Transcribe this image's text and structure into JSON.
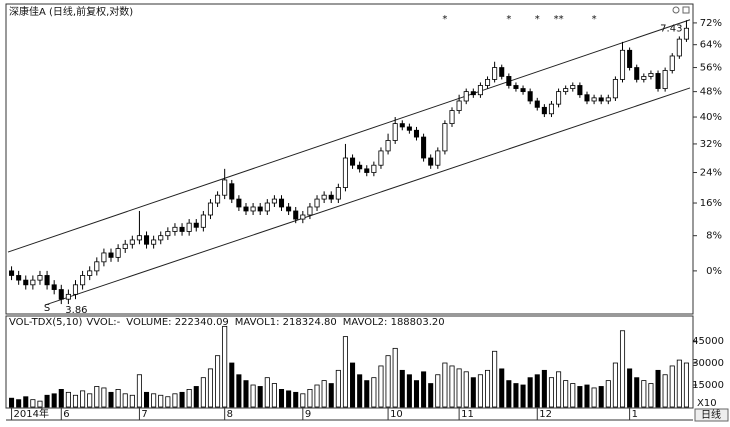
{
  "chart_data": [
    {
      "type": "candlestick",
      "title": "深康佳A (日线,前复权,对数)",
      "categories": [
        "2014年",
        null,
        null,
        null,
        null,
        null,
        null,
        "6",
        null,
        null,
        null,
        null,
        null,
        null,
        null,
        null,
        null,
        null,
        "7",
        null,
        null,
        null,
        null,
        null,
        null,
        null,
        null,
        null,
        null,
        null,
        "8",
        null,
        null,
        null,
        null,
        null,
        null,
        null,
        null,
        null,
        null,
        "9",
        null,
        null,
        null,
        null,
        null,
        null,
        null,
        null,
        null,
        null,
        null,
        "10",
        null,
        null,
        null,
        null,
        null,
        null,
        null,
        null,
        null,
        "11",
        null,
        null,
        null,
        null,
        null,
        null,
        null,
        null,
        null,
        null,
        "12",
        null,
        null,
        null,
        null,
        null,
        null,
        null,
        null,
        null,
        null,
        null,
        null,
        "1",
        null,
        null,
        null,
        null,
        null,
        null,
        null,
        null
      ],
      "open": [
        0,
        -1,
        -2,
        -3,
        -2,
        -1,
        -3,
        -4,
        -6,
        -5,
        -3,
        -1,
        0,
        2,
        4,
        3,
        5,
        6,
        7,
        8,
        6,
        7,
        8,
        9,
        10,
        9,
        11,
        10,
        13,
        16,
        18,
        21,
        17,
        15,
        14,
        15,
        14,
        16,
        17,
        15,
        14,
        12,
        13,
        15,
        17,
        18,
        17,
        20,
        28,
        26,
        25,
        24,
        26,
        30,
        33,
        38,
        37,
        36,
        34,
        28,
        26,
        30,
        38,
        42,
        45,
        48,
        47,
        50,
        52,
        56,
        53,
        50,
        49,
        48,
        45,
        43,
        41,
        44,
        48,
        49,
        50,
        47,
        45,
        46,
        45,
        46,
        52,
        62,
        56,
        52,
        53,
        54,
        49,
        55,
        60,
        66
      ],
      "high": [
        1,
        0,
        -1,
        -1,
        0,
        0,
        -2,
        -3,
        -4,
        -2,
        0,
        1,
        3,
        5,
        5,
        6,
        7,
        8,
        14,
        9,
        8,
        9,
        10,
        11,
        11,
        12,
        12,
        14,
        17,
        19,
        25,
        22,
        18,
        16,
        16,
        16,
        17,
        18,
        18,
        16,
        15,
        14,
        16,
        18,
        19,
        19,
        21,
        32,
        29,
        27,
        26,
        27,
        31,
        35,
        40,
        39,
        38,
        37,
        35,
        29,
        31,
        39,
        43,
        47,
        49,
        49,
        51,
        53,
        58,
        57,
        54,
        51,
        50,
        49,
        46,
        44,
        45,
        49,
        50,
        51,
        51,
        48,
        47,
        47,
        47,
        53,
        65,
        63,
        57,
        54,
        55,
        55,
        56,
        61,
        67,
        73
      ],
      "low": [
        -2,
        -3,
        -4,
        -4,
        -3,
        -4,
        -5,
        -7,
        -7,
        -6,
        -4,
        -2,
        -1,
        1,
        2,
        2,
        4,
        5,
        6,
        5,
        5,
        6,
        7,
        8,
        8,
        8,
        9,
        9,
        12,
        15,
        17,
        16,
        14,
        13,
        13,
        13,
        13,
        15,
        14,
        13,
        11,
        11,
        12,
        14,
        16,
        16,
        16,
        19,
        25,
        24,
        23,
        23,
        25,
        29,
        32,
        36,
        35,
        33,
        27,
        25,
        25,
        29,
        37,
        41,
        44,
        46,
        46,
        49,
        51,
        52,
        49,
        48,
        47,
        44,
        42,
        40,
        40,
        43,
        47,
        48,
        46,
        44,
        44,
        44,
        44,
        45,
        51,
        55,
        51,
        51,
        52,
        48,
        48,
        54,
        59,
        65
      ],
      "close": [
        -1,
        -2,
        -3,
        -2,
        -1,
        -3,
        -4,
        -6,
        -5,
        -3,
        -1,
        0,
        2,
        4,
        3,
        5,
        6,
        7,
        8,
        6,
        7,
        8,
        9,
        10,
        9,
        11,
        10,
        13,
        16,
        18,
        22,
        17,
        15,
        14,
        15,
        14,
        16,
        17,
        15,
        14,
        12,
        13,
        15,
        17,
        18,
        17,
        20,
        28,
        26,
        25,
        24,
        26,
        30,
        33,
        38,
        37,
        36,
        34,
        28,
        26,
        30,
        38,
        42,
        45,
        48,
        47,
        50,
        52,
        56,
        53,
        50,
        49,
        48,
        45,
        43,
        41,
        44,
        48,
        49,
        50,
        47,
        45,
        46,
        45,
        46,
        52,
        62,
        56,
        52,
        53,
        54,
        49,
        55,
        60,
        66,
        70
      ],
      "ylim": [
        -8.6,
        77.7
      ],
      "log_scale": true,
      "grid": false,
      "yticks": [
        {
          "value": 0,
          "label": "0%"
        },
        {
          "value": 8,
          "label": "8%"
        },
        {
          "value": 16,
          "label": "16%"
        },
        {
          "value": 24,
          "label": "24%"
        },
        {
          "value": 32,
          "label": "32%"
        },
        {
          "value": 40,
          "label": "40%"
        },
        {
          "value": 48,
          "label": "48%"
        },
        {
          "value": 56,
          "label": "56%"
        },
        {
          "value": 64,
          "label": "64%"
        },
        {
          "value": 72,
          "label": "72%"
        }
      ],
      "trendlines": [
        {
          "x": [
            -0.5,
            95.5
          ],
          "y": [
            4.2,
            73.2
          ]
        },
        {
          "x": [
            4.7,
            95.5
          ],
          "y": [
            -7.2,
            49.2
          ]
        }
      ],
      "annotations": [
        {
          "index": 7,
          "value": -7,
          "label": "3.86"
        },
        {
          "index": 95,
          "value": 73,
          "label": "7.43"
        }
      ],
      "signals": [
        {
          "index": 61,
          "label": "*"
        },
        {
          "index": 70,
          "label": "*"
        },
        {
          "index": 74,
          "label": "*"
        },
        {
          "index": 77,
          "label": "**"
        },
        {
          "index": 82,
          "label": "*"
        }
      ],
      "bottom_signals": [
        {
          "index": 5,
          "label": "S"
        }
      ],
      "period_label": "日线"
    },
    {
      "type": "volume",
      "indicator": "VOL-TDX(5,10)",
      "readouts": [
        "VVOL:-",
        "VOLUME: 222340.09",
        "MAVOL1: 218324.80",
        "MAVOL2: 188803.20"
      ],
      "values": [
        6000,
        5000,
        7000,
        5000,
        4000,
        8000,
        9000,
        12000,
        10000,
        8000,
        11000,
        9000,
        14000,
        13000,
        10000,
        12000,
        9000,
        8000,
        22000,
        10000,
        9000,
        8000,
        7000,
        9000,
        10000,
        12000,
        14000,
        20000,
        26000,
        35000,
        55000,
        30000,
        22000,
        18000,
        15000,
        14000,
        20000,
        16000,
        12000,
        11000,
        10000,
        9000,
        12000,
        15000,
        18000,
        16000,
        25000,
        48000,
        30000,
        22000,
        18000,
        20000,
        28000,
        35000,
        40000,
        25000,
        22000,
        18000,
        24000,
        16000,
        22000,
        30000,
        28000,
        26000,
        24000,
        20000,
        22000,
        25000,
        38000,
        26000,
        18000,
        16000,
        15000,
        20000,
        22000,
        25000,
        20000,
        24000,
        18000,
        16000,
        14000,
        15000,
        13000,
        14000,
        18000,
        30000,
        52000,
        26000,
        20000,
        18000,
        16000,
        25000,
        22000,
        28000,
        32000,
        30000
      ],
      "ylim": [
        0,
        60700
      ],
      "yticks": [
        15000,
        30000,
        45000
      ],
      "scale_label": "X10"
    }
  ]
}
